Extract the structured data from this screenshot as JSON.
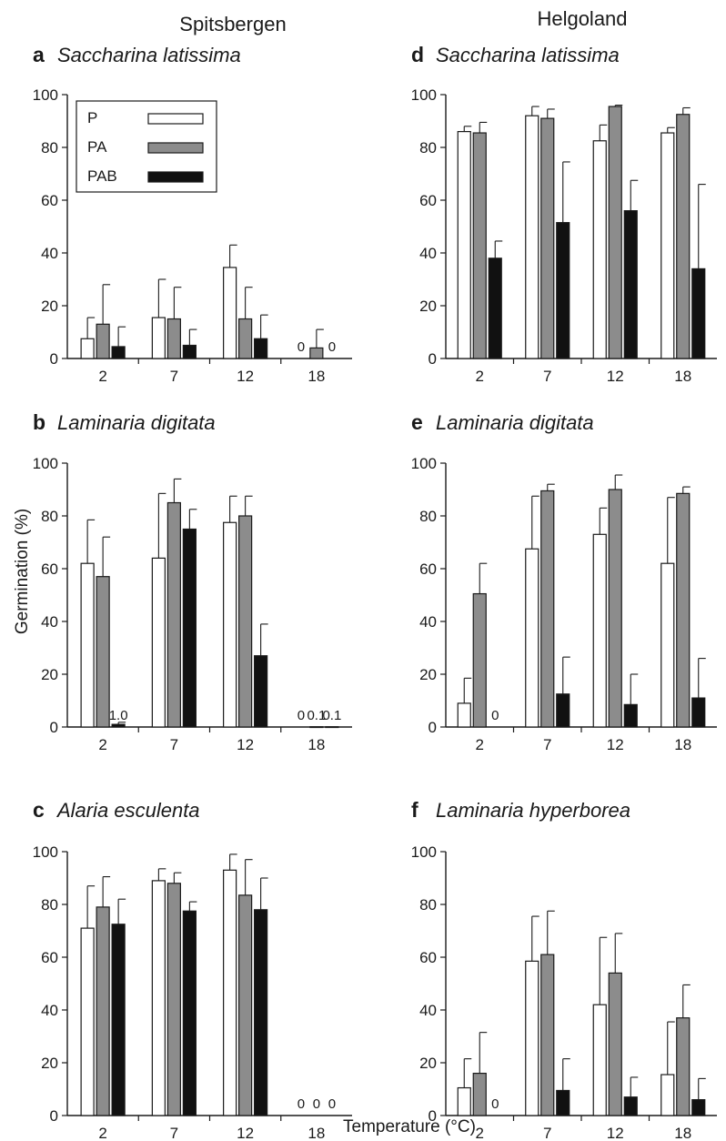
{
  "figure": {
    "site_titles": [
      "Spitsbergen",
      "Helgoland"
    ],
    "ylabel": "Germination (%)",
    "xlabel": "Temperature (°C)"
  },
  "legend": {
    "entries": [
      {
        "label": "P",
        "color": "#ffffff"
      },
      {
        "label": "PA",
        "color": "#8c8c8c"
      },
      {
        "label": "PAB",
        "color": "#111111"
      }
    ]
  },
  "chart_data": [
    {
      "type": "bar",
      "panel": "a",
      "species": "Saccharina latissima",
      "site": "Spitsbergen",
      "categories": [
        "2",
        "7",
        "12",
        "18"
      ],
      "ylim": [
        0,
        100
      ],
      "yticks": [
        0,
        20,
        40,
        60,
        80,
        100
      ],
      "series": [
        {
          "name": "P",
          "values": [
            7.5,
            15.5,
            34.5,
            0
          ],
          "errors": [
            8,
            14.5,
            8.5,
            0
          ]
        },
        {
          "name": "PA",
          "values": [
            13,
            15,
            15,
            4
          ],
          "errors": [
            15,
            12,
            12,
            7
          ]
        },
        {
          "name": "PAB",
          "values": [
            4.5,
            5,
            7.5,
            0
          ],
          "errors": [
            7.5,
            6,
            9,
            0
          ]
        }
      ],
      "annotations": [
        {
          "category": "18",
          "series": "P",
          "text": "0"
        },
        {
          "category": "18",
          "series": "PAB",
          "text": "0"
        }
      ]
    },
    {
      "type": "bar",
      "panel": "b",
      "species": "Laminaria digitata",
      "site": "Spitsbergen",
      "categories": [
        "2",
        "7",
        "12",
        "18"
      ],
      "ylim": [
        0,
        100
      ],
      "yticks": [
        0,
        20,
        40,
        60,
        80,
        100
      ],
      "series": [
        {
          "name": "P",
          "values": [
            62,
            64,
            77.5,
            0
          ],
          "errors": [
            16.5,
            24.5,
            10,
            0
          ]
        },
        {
          "name": "PA",
          "values": [
            57,
            85,
            80,
            0.1
          ],
          "errors": [
            15,
            9,
            7.5,
            0
          ]
        },
        {
          "name": "PAB",
          "values": [
            1.0,
            75,
            27,
            0.1
          ],
          "errors": [
            0.8,
            7.5,
            12,
            0
          ]
        }
      ],
      "annotations": [
        {
          "category": "2",
          "series": "PAB",
          "text": "1.0"
        },
        {
          "category": "18",
          "series": "P",
          "text": "0"
        },
        {
          "category": "18",
          "series": "PA",
          "text": "0.1"
        },
        {
          "category": "18",
          "series": "PAB",
          "text": "0.1"
        }
      ]
    },
    {
      "type": "bar",
      "panel": "c",
      "species": "Alaria esculenta",
      "site": "Spitsbergen",
      "categories": [
        "2",
        "7",
        "12",
        "18"
      ],
      "ylim": [
        0,
        100
      ],
      "yticks": [
        0,
        20,
        40,
        60,
        80,
        100
      ],
      "series": [
        {
          "name": "P",
          "values": [
            71,
            89,
            93,
            0
          ],
          "errors": [
            16,
            4.5,
            6,
            0
          ]
        },
        {
          "name": "PA",
          "values": [
            79,
            88,
            83.5,
            0
          ],
          "errors": [
            11.5,
            4,
            13.5,
            0
          ]
        },
        {
          "name": "PAB",
          "values": [
            72.5,
            77.5,
            78,
            0
          ],
          "errors": [
            9.5,
            3.5,
            12,
            0
          ]
        }
      ],
      "annotations": [
        {
          "category": "18",
          "series": "P",
          "text": "0"
        },
        {
          "category": "18",
          "series": "PA",
          "text": "0"
        },
        {
          "category": "18",
          "series": "PAB",
          "text": "0"
        }
      ]
    },
    {
      "type": "bar",
      "panel": "d",
      "species": "Saccharina latissima",
      "site": "Helgoland",
      "categories": [
        "2",
        "7",
        "12",
        "18"
      ],
      "ylim": [
        0,
        100
      ],
      "yticks": [
        0,
        20,
        40,
        60,
        80,
        100
      ],
      "series": [
        {
          "name": "P",
          "values": [
            86,
            92,
            82.5,
            85.5
          ],
          "errors": [
            2,
            3.5,
            6,
            2
          ]
        },
        {
          "name": "PA",
          "values": [
            85.5,
            91,
            95.5,
            92.5
          ],
          "errors": [
            4,
            3.5,
            0.5,
            2.5
          ]
        },
        {
          "name": "PAB",
          "values": [
            38,
            51.5,
            56,
            34
          ],
          "errors": [
            6.5,
            23,
            11.5,
            32
          ]
        }
      ],
      "annotations": []
    },
    {
      "type": "bar",
      "panel": "e",
      "species": "Laminaria digitata",
      "site": "Helgoland",
      "categories": [
        "2",
        "7",
        "12",
        "18"
      ],
      "ylim": [
        0,
        100
      ],
      "yticks": [
        0,
        20,
        40,
        60,
        80,
        100
      ],
      "series": [
        {
          "name": "P",
          "values": [
            9,
            67.5,
            73,
            62
          ],
          "errors": [
            9.5,
            20,
            10,
            25
          ]
        },
        {
          "name": "PA",
          "values": [
            50.5,
            89.5,
            90,
            88.5
          ],
          "errors": [
            11.5,
            2.5,
            5.5,
            2.5
          ]
        },
        {
          "name": "PAB",
          "values": [
            0,
            12.5,
            8.5,
            11
          ],
          "errors": [
            0,
            14,
            11.5,
            15
          ]
        }
      ],
      "annotations": [
        {
          "category": "2",
          "series": "PAB",
          "text": "0"
        }
      ]
    },
    {
      "type": "bar",
      "panel": "f",
      "species": "Laminaria hyperborea",
      "site": "Helgoland",
      "categories": [
        "2",
        "7",
        "12",
        "18"
      ],
      "ylim": [
        0,
        100
      ],
      "yticks": [
        0,
        20,
        40,
        60,
        80,
        100
      ],
      "series": [
        {
          "name": "P",
          "values": [
            10.5,
            58.5,
            42,
            15.5
          ],
          "errors": [
            11,
            17,
            25.5,
            20
          ]
        },
        {
          "name": "PA",
          "values": [
            16,
            61,
            54,
            37
          ],
          "errors": [
            15.5,
            16.5,
            15,
            12.5
          ]
        },
        {
          "name": "PAB",
          "values": [
            0,
            9.5,
            7,
            6
          ],
          "errors": [
            0,
            12,
            7.5,
            8
          ]
        }
      ],
      "annotations": [
        {
          "category": "2",
          "series": "PAB",
          "text": "0"
        }
      ]
    }
  ]
}
